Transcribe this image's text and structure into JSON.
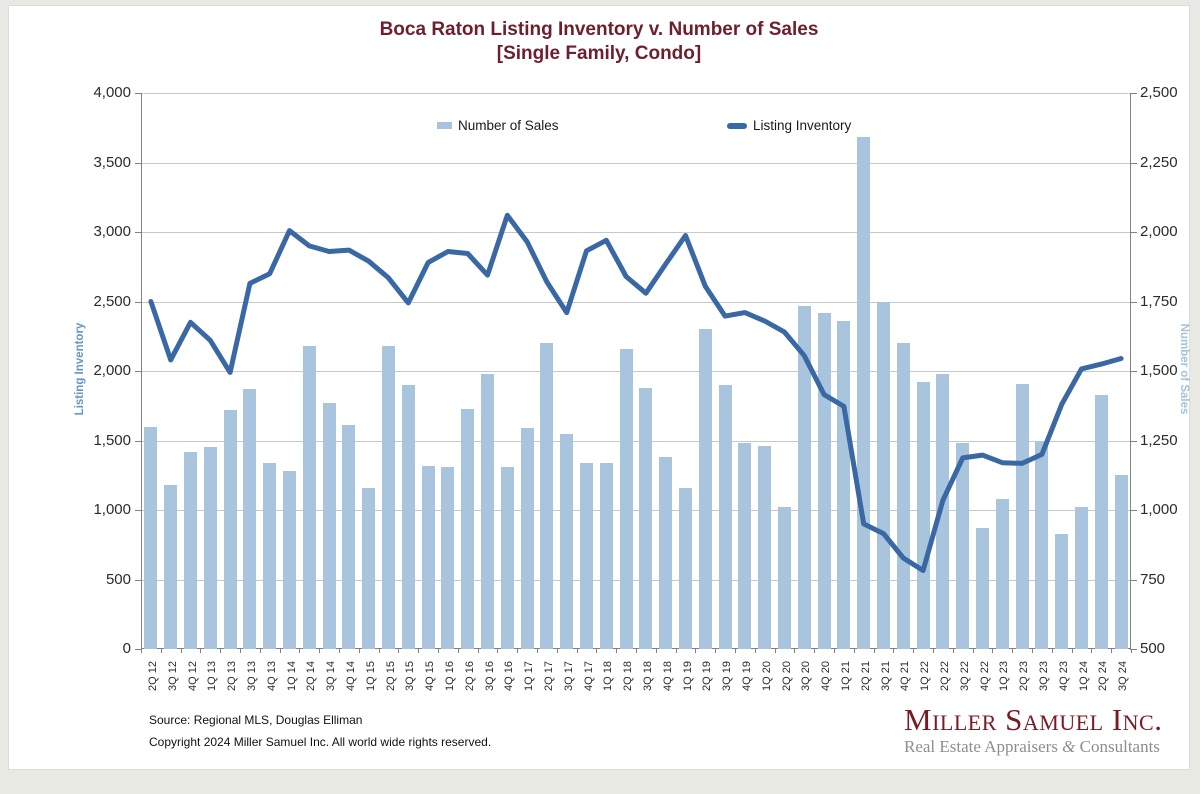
{
  "chart_data": {
    "type": "combo",
    "title": "Boca Raton Listing Inventory v. Number of Sales",
    "subtitle": "[Single Family, Condo]",
    "grid": true,
    "legend_position": "top-inside",
    "categories": [
      "2Q 12",
      "3Q 12",
      "4Q 12",
      "1Q 13",
      "2Q 13",
      "3Q 13",
      "4Q 13",
      "1Q 14",
      "2Q 14",
      "3Q 14",
      "4Q 14",
      "1Q 15",
      "2Q 15",
      "3Q 15",
      "4Q 15",
      "1Q 16",
      "2Q 16",
      "3Q 16",
      "4Q 16",
      "1Q 17",
      "2Q 17",
      "3Q 17",
      "4Q 17",
      "1Q 18",
      "2Q 18",
      "3Q 18",
      "4Q 18",
      "1Q 19",
      "2Q 19",
      "3Q 19",
      "4Q 19",
      "1Q 20",
      "2Q 20",
      "3Q 20",
      "4Q 20",
      "1Q 21",
      "2Q 21",
      "3Q 21",
      "4Q 21",
      "1Q 22",
      "2Q 22",
      "3Q 22",
      "4Q 22",
      "1Q 23",
      "2Q 23",
      "3Q 23",
      "4Q 23",
      "1Q 24",
      "2Q 24",
      "3Q 24"
    ],
    "series": [
      {
        "name": "Number of Sales",
        "type": "bar",
        "axis": "right",
        "values": [
          1300,
          1090,
          1210,
          1225,
          1360,
          1435,
          1170,
          1140,
          1590,
          1385,
          1305,
          1080,
          1590,
          1450,
          1160,
          1155,
          1365,
          1490,
          1155,
          1295,
          1600,
          1275,
          1170,
          1170,
          1580,
          1440,
          1190,
          1080,
          1650,
          1450,
          1240,
          1230,
          1010,
          1735,
          1710,
          1680,
          2340,
          1750,
          1600,
          1460,
          1490,
          1240,
          935,
          1040,
          1455,
          1250,
          915,
          1010,
          1415,
          1125
        ]
      },
      {
        "name": "Listing Inventory",
        "type": "line",
        "axis": "left",
        "values": [
          2500,
          2080,
          2350,
          2220,
          1990,
          2630,
          2700,
          3010,
          2900,
          2860,
          2870,
          2790,
          2670,
          2490,
          2780,
          2860,
          2845,
          2690,
          3120,
          2930,
          2640,
          2420,
          2865,
          2940,
          2680,
          2560,
          2770,
          2975,
          2610,
          2395,
          2420,
          2360,
          2280,
          2110,
          1830,
          1745,
          900,
          830,
          655,
          565,
          1070,
          1375,
          1395,
          1340,
          1335,
          1400,
          1760,
          2015,
          2050,
          2090
        ]
      }
    ],
    "left_axis": {
      "label": "Listing Inventory",
      "min": 0,
      "max": 4000,
      "step": 500,
      "ticks": [
        "4,000",
        "3,500",
        "3,000",
        "2,500",
        "2,000",
        "1,500",
        "1,000",
        "500",
        "0"
      ]
    },
    "right_axis": {
      "label": "Number of Sales",
      "min": 500,
      "max": 2500,
      "step": 250,
      "ticks": [
        "2,500",
        "2,250",
        "2,000",
        "1,750",
        "1,500",
        "1,250",
        "1,000",
        "750",
        "500"
      ]
    }
  },
  "footer": {
    "source": "Source: Regional MLS, Douglas Elliman",
    "copyright": "Copyright 2024 Miller Samuel Inc.  All world wide rights reserved."
  },
  "logo": {
    "name": "Miller Samuel Inc.",
    "tagline_text": "Real Estate Appraisers ",
    "tagline_amp": "&",
    "tagline_end": " Consultants"
  },
  "colors": {
    "title": "#6E1F2D",
    "bar": "#A9C5DE",
    "line": "#3A68A4",
    "left_axis_label": "#6496C8",
    "right_axis_label": "#A5C3DC",
    "grid": "#C8C8C8",
    "axis": "#808080",
    "tick_text": "#2B2B2B",
    "logo_maroon": "#7A1B24",
    "logo_gray": "#8E8E8E",
    "frame_bg": "#E8E9E3"
  }
}
